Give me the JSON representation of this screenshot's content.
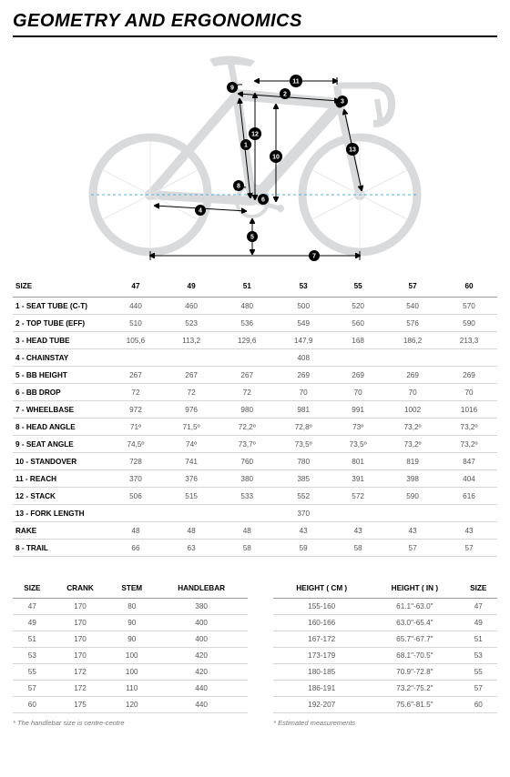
{
  "title": "GEOMETRY AND ERGONOMICS",
  "colors": {
    "bike_silhouette": "#d9dadb",
    "dimension_line": "#000000",
    "dimension_dashed": "#52aee0",
    "text": "#000000",
    "muted_text": "#555555",
    "border": "#d7d7d7",
    "header_border": "#999999",
    "background": "#ffffff"
  },
  "geometry_table": {
    "size_header": "SIZE",
    "sizes": [
      "47",
      "49",
      "51",
      "53",
      "55",
      "57",
      "60"
    ],
    "rows": [
      {
        "label": "1 - SEAT TUBE (C-T)",
        "v": [
          "440",
          "460",
          "480",
          "500",
          "520",
          "540",
          "570"
        ]
      },
      {
        "label": "2 - TOP TUBE (EFF)",
        "v": [
          "510",
          "523",
          "536",
          "549",
          "560",
          "576",
          "590"
        ]
      },
      {
        "label": "3 - HEAD TUBE",
        "v": [
          "105,6",
          "113,2",
          "129,6",
          "147,9",
          "168",
          "186,2",
          "213,3"
        ]
      },
      {
        "label": "4 - CHAINSTAY",
        "v": [
          "",
          "",
          "",
          "408",
          "",
          "",
          ""
        ]
      },
      {
        "label": "5 - BB HEIGHT",
        "v": [
          "267",
          "267",
          "267",
          "269",
          "269",
          "269",
          "269"
        ]
      },
      {
        "label": "6 - BB DROP",
        "v": [
          "72",
          "72",
          "72",
          "70",
          "70",
          "70",
          "70"
        ]
      },
      {
        "label": "7 - WHEELBASE",
        "v": [
          "972",
          "976",
          "980",
          "981",
          "991",
          "1002",
          "1016"
        ]
      },
      {
        "label": "8 - HEAD ANGLE",
        "v": [
          "71º",
          "71,5º",
          "72,2º",
          "72,8º",
          "73º",
          "73,2º",
          "73,2º"
        ]
      },
      {
        "label": "9 - SEAT ANGLE",
        "v": [
          "74,5º",
          "74º",
          "73,7º",
          "73,5º",
          "73,5º",
          "73,2º",
          "73,2º"
        ]
      },
      {
        "label": "10 - STANDOVER",
        "v": [
          "728",
          "741",
          "760",
          "780",
          "801",
          "819",
          "847"
        ]
      },
      {
        "label": "11 - REACH",
        "v": [
          "370",
          "376",
          "380",
          "385",
          "391",
          "398",
          "404"
        ]
      },
      {
        "label": "12 - STACK",
        "v": [
          "506",
          "515",
          "533",
          "552",
          "572",
          "590",
          "616"
        ]
      },
      {
        "label": "13 - FORK LENGTH",
        "v": [
          "",
          "",
          "",
          "370",
          "",
          "",
          ""
        ]
      },
      {
        "label": "RAKE",
        "v": [
          "48",
          "48",
          "48",
          "43",
          "43",
          "43",
          "43"
        ]
      },
      {
        "label": "8 - TRAIL",
        "v": [
          "66",
          "63",
          "58",
          "59",
          "58",
          "57",
          "57"
        ]
      }
    ]
  },
  "fit_table": {
    "headers": [
      "SIZE",
      "CRANK",
      "STEM",
      "HANDLEBAR"
    ],
    "rows": [
      [
        "47",
        "170",
        "80",
        "380"
      ],
      [
        "49",
        "170",
        "90",
        "400"
      ],
      [
        "51",
        "170",
        "90",
        "400"
      ],
      [
        "53",
        "170",
        "100",
        "420"
      ],
      [
        "55",
        "172",
        "100",
        "420"
      ],
      [
        "57",
        "172",
        "110",
        "440"
      ],
      [
        "60",
        "175",
        "120",
        "440"
      ]
    ],
    "footnote": "* The handlebar size is centre-centre"
  },
  "height_table": {
    "headers": [
      "HEIGHT ( CM )",
      "HEIGHT ( IN )",
      "SIZE"
    ],
    "rows": [
      [
        "155-160",
        "61.1\"-63.0\"",
        "47"
      ],
      [
        "160-166",
        "63.0\"-65.4\"",
        "49"
      ],
      [
        "167-172",
        "65.7\"-67.7\"",
        "51"
      ],
      [
        "173-179",
        "68.1\"-70.5\"",
        "53"
      ],
      [
        "180-185",
        "70.9\"-72.8\"",
        "55"
      ],
      [
        "186-191",
        "73.2\"-75.2\"",
        "57"
      ],
      [
        "192-207",
        "75.6\"-81.5\"",
        "60"
      ]
    ],
    "footnote": "* Estimated measurements"
  },
  "diagram": {
    "labels": [
      "1",
      "2",
      "3",
      "4",
      "5",
      "6",
      "7",
      "8",
      "9",
      "10",
      "11",
      "12",
      "13"
    ]
  }
}
